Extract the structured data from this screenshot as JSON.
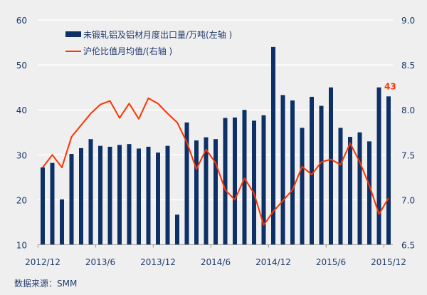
{
  "chart_data": {
    "type": "bar+line",
    "title": "",
    "categories": [
      "2012/12",
      "2013/1",
      "2013/2",
      "2013/3",
      "2013/4",
      "2013/5",
      "2013/6",
      "2013/7",
      "2013/8",
      "2013/9",
      "2013/10",
      "2013/11",
      "2013/12",
      "2014/1",
      "2014/2",
      "2014/3",
      "2014/4",
      "2014/5",
      "2014/6",
      "2014/7",
      "2014/8",
      "2014/9",
      "2014/10",
      "2014/11",
      "2014/12",
      "2015/1",
      "2015/2",
      "2015/3",
      "2015/4",
      "2015/5",
      "2015/6",
      "2015/7",
      "2015/8",
      "2015/9",
      "2015/10",
      "2015/11",
      "2015/12"
    ],
    "x_tick_labels": [
      "2012/12",
      "2013/6",
      "2013/12",
      "2014/6",
      "2014/12",
      "2015/6",
      "2015/12"
    ],
    "x_tick_indices": [
      0,
      6,
      12,
      18,
      24,
      30,
      36
    ],
    "series": [
      {
        "name": "未锻轧铝及铝材月度出口量/万吨(左轴 )",
        "type": "bar",
        "axis": "left",
        "color": "#0d3166",
        "values": [
          27.2,
          28.2,
          20.1,
          30.2,
          31.5,
          33.5,
          32.0,
          31.8,
          32.2,
          32.4,
          31.4,
          31.8,
          30.5,
          32.0,
          16.7,
          37.2,
          33.2,
          33.9,
          33.5,
          38.2,
          38.3,
          40.0,
          37.6,
          38.8,
          54.0,
          43.3,
          42.1,
          36.0,
          42.9,
          40.9,
          45.0,
          36.0,
          34.0,
          35.0,
          33.0,
          45.0,
          43.0
        ]
      },
      {
        "name": "沪伦比值月均值/(右轴 )",
        "type": "line",
        "axis": "right",
        "color": "#ff3300",
        "values": [
          7.36,
          7.5,
          7.36,
          7.7,
          7.83,
          7.96,
          8.06,
          8.1,
          7.91,
          8.07,
          7.9,
          8.13,
          8.07,
          7.96,
          7.86,
          7.64,
          7.34,
          7.56,
          7.41,
          7.11,
          7.0,
          7.24,
          7.07,
          6.72,
          6.87,
          6.99,
          7.11,
          7.37,
          7.28,
          7.42,
          7.45,
          7.39,
          7.63,
          7.42,
          7.16,
          6.84,
          7.02
        ]
      }
    ],
    "left_axis": {
      "ylim": [
        10,
        60
      ],
      "ticks": [
        "10",
        "20",
        "30",
        "40",
        "50",
        "60"
      ]
    },
    "right_axis": {
      "ylim": [
        6.5,
        9.0
      ],
      "ticks": [
        "6.5",
        "7.0",
        "7.5",
        "8.0",
        "8.5",
        "9.0"
      ]
    },
    "annotation": {
      "text": "43",
      "color": "#ff3300",
      "index": 36
    },
    "grid": true,
    "legend": "top-left",
    "source": "数据来源：SMM"
  }
}
